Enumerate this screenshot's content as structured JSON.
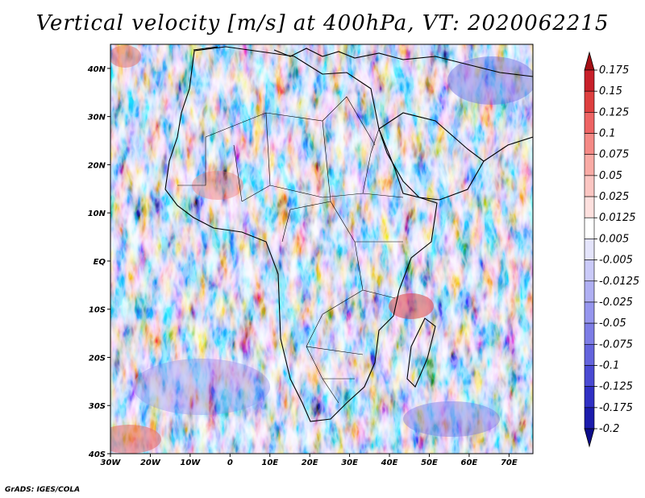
{
  "title": "Vertical velocity [m/s] at 400hPa, VT: 2020062215",
  "credit": "GrADS: IGES/COLA",
  "map": {
    "region": "Africa",
    "lon_range": [
      -30,
      76
    ],
    "lat_range": [
      -40,
      45
    ],
    "lon_ticks": [
      "30W",
      "20W",
      "10W",
      "0",
      "10E",
      "20E",
      "30E",
      "40E",
      "50E",
      "60E",
      "70E"
    ],
    "lat_ticks": [
      "40N",
      "30N",
      "20N",
      "10N",
      "EQ",
      "10S",
      "20S",
      "30S",
      "40S"
    ]
  },
  "colorbar": {
    "levels": [
      "0.175",
      "0.15",
      "0.125",
      "0.1",
      "0.075",
      "0.05",
      "0.025",
      "0.0125",
      "0.005",
      "-0.005",
      "-0.0125",
      "-0.025",
      "-0.05",
      "-0.075",
      "-0.1",
      "-0.125",
      "-0.175",
      "-0.2"
    ],
    "colors": [
      "#a50f15",
      "#c8202a",
      "#de3f3f",
      "#ee6464",
      "#f58a86",
      "#f9aba5",
      "#fbc6c2",
      "#fde0de",
      "#ffffff",
      "#e4e4fb",
      "#cacaf8",
      "#b0b0f3",
      "#9696ee",
      "#7d7de6",
      "#6464dd",
      "#4a4ad3",
      "#3030c4",
      "#1c1cac",
      "#0c0c8a"
    ]
  }
}
